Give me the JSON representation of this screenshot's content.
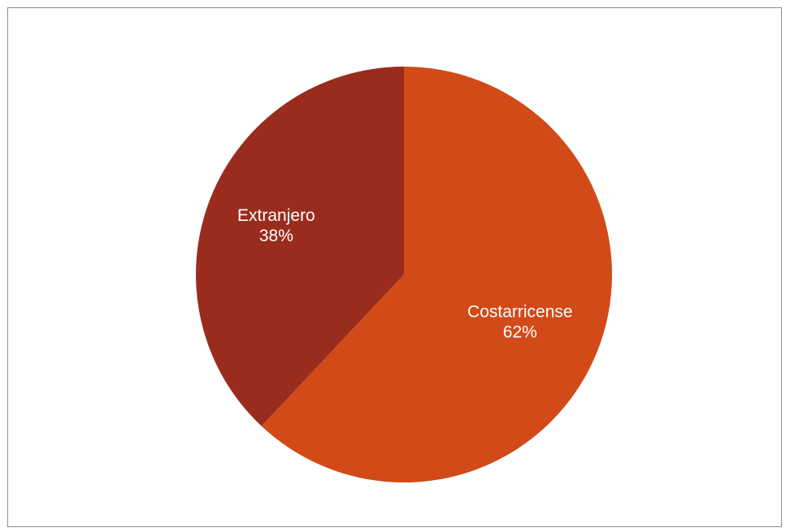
{
  "chart_data": {
    "type": "pie",
    "title": "",
    "categories": [
      "Costarricense",
      "Extranjero"
    ],
    "values": [
      62,
      38
    ],
    "value_labels": [
      "62%",
      "38%"
    ],
    "colors": [
      "#d14a18",
      "#9a2c1e"
    ],
    "start_angle": "12 o'clock",
    "direction": "clockwise",
    "legend": "none",
    "data_labels": "inside, category name and percentage"
  }
}
